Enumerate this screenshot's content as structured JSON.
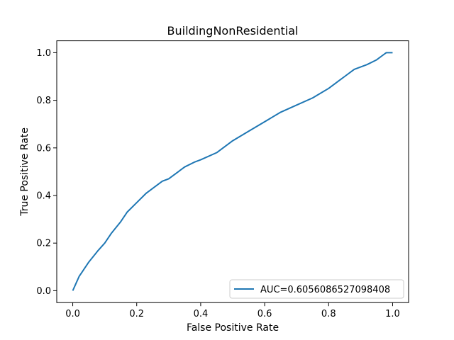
{
  "chart_data": {
    "type": "line",
    "title": "BuildingNonResidential",
    "xlabel": "False Positive Rate",
    "ylabel": "True Positive Rate",
    "xlim": [
      -0.05,
      1.05
    ],
    "ylim": [
      -0.05,
      1.05
    ],
    "xticks": [
      0.0,
      0.2,
      0.4,
      0.6,
      0.8,
      1.0
    ],
    "xtick_labels": [
      "0.0",
      "0.2",
      "0.4",
      "0.6",
      "0.8",
      "1.0"
    ],
    "yticks": [
      0.0,
      0.2,
      0.4,
      0.6,
      0.8,
      1.0
    ],
    "ytick_labels": [
      "0.0",
      "0.2",
      "0.4",
      "0.6",
      "0.8",
      "1.0"
    ],
    "grid": false,
    "legend_position": "lower-right",
    "series": [
      {
        "name": "AUC=0.6056086527098408",
        "color": "#1f77b4",
        "x": [
          0.0,
          0.01,
          0.02,
          0.03,
          0.05,
          0.08,
          0.1,
          0.12,
          0.15,
          0.17,
          0.2,
          0.23,
          0.25,
          0.28,
          0.3,
          0.33,
          0.35,
          0.38,
          0.4,
          0.45,
          0.5,
          0.55,
          0.6,
          0.65,
          0.7,
          0.75,
          0.8,
          0.83,
          0.85,
          0.88,
          0.9,
          0.92,
          0.95,
          0.97,
          0.98,
          1.0
        ],
        "y": [
          0.0,
          0.03,
          0.06,
          0.08,
          0.12,
          0.17,
          0.2,
          0.24,
          0.29,
          0.33,
          0.37,
          0.41,
          0.43,
          0.46,
          0.47,
          0.5,
          0.52,
          0.54,
          0.55,
          0.58,
          0.63,
          0.67,
          0.71,
          0.75,
          0.78,
          0.81,
          0.85,
          0.88,
          0.9,
          0.93,
          0.94,
          0.95,
          0.97,
          0.99,
          1.0,
          1.0
        ]
      }
    ]
  }
}
